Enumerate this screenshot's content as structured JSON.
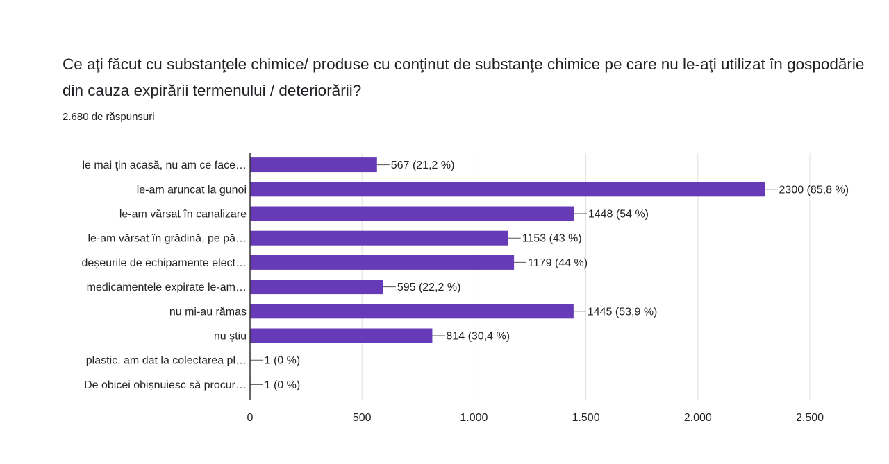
{
  "question": {
    "title": "Ce aţi făcut cu substanţele chimice/ produse cu conţinut de substanţe chimice pe care nu le-aţi utilizat în gospodărie din cauza expirării termenului / deteriorării?",
    "response_count": "2.680 de răspunsuri"
  },
  "colors": {
    "bar": "#673ab7",
    "grid": "#e0e0e0",
    "axis": "#333333",
    "text": "#222222"
  },
  "chart_data": {
    "type": "bar",
    "orientation": "horizontal",
    "categories": [
      "le mai ţin acasă, nu am ce face…",
      "le-am aruncat la gunoi",
      "le-am vărsat în canalizare",
      "le-am vărsat în grădină, pe pă…",
      "deșeurile de echipamente elect…",
      "medicamentele expirate le-am…",
      "nu mi-au rămas",
      "nu știu",
      "plastic, am dat la colectarea pl…",
      "De obicei obișnuiesc să procur…"
    ],
    "values": [
      567,
      2300,
      1448,
      1153,
      1179,
      595,
      1445,
      814,
      1,
      1
    ],
    "value_labels": [
      "567 (21,2 %)",
      "2300 (85,8 %)",
      "1448 (54 %)",
      "1153 (43 %)",
      "1179 (44 %)",
      "595 (22,2 %)",
      "1445 (53,9 %)",
      "814 (30,4 %)",
      "1 (0 %)",
      "1 (0 %)"
    ],
    "xlim": [
      0,
      2500
    ],
    "x_ticks": [
      0,
      500,
      1000,
      1500,
      2000,
      2500
    ],
    "x_tick_labels": [
      "0",
      "500",
      "1.000",
      "1.500",
      "2.000",
      "2.500"
    ],
    "grid": true
  }
}
